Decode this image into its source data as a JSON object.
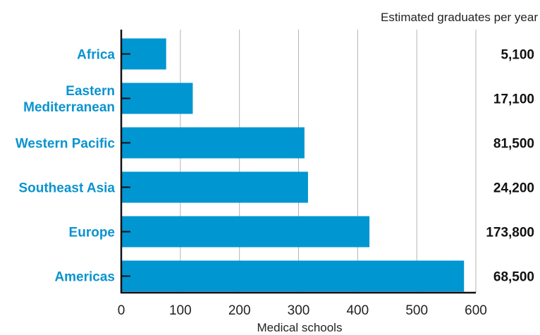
{
  "chart_data": {
    "type": "bar",
    "orientation": "horizontal",
    "categories": [
      "Africa",
      "Eastern Mediterranean",
      "Western Pacific",
      "Southeast Asia",
      "Europe",
      "Americas"
    ],
    "category_lines": [
      [
        "Africa"
      ],
      [
        "Eastern",
        "Mediterranean"
      ],
      [
        "Western Pacific"
      ],
      [
        "Southeast Asia"
      ],
      [
        "Europe"
      ],
      [
        "Americas"
      ]
    ],
    "values": [
      76,
      121,
      310,
      316,
      420,
      580
    ],
    "side_header": "Estimated graduates per year",
    "side_values": [
      "5,100",
      "17,100",
      "81,500",
      "24,200",
      "173,800",
      "68,500"
    ],
    "xlabel": "Medical schools",
    "xlim": [
      0,
      600
    ],
    "xticks": [
      "0",
      "100",
      "200",
      "300",
      "400",
      "500",
      "600"
    ],
    "grid": true,
    "colors": {
      "bar": "#0096d1",
      "category_text": "#0a93cf",
      "grid": "#b4b4b4",
      "axis": "#111111"
    }
  }
}
